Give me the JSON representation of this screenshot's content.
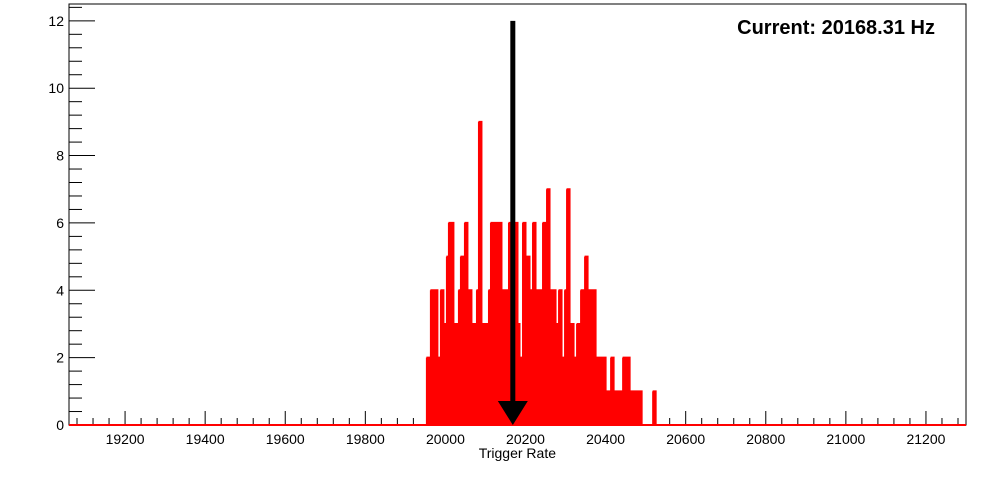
{
  "chart_data": {
    "type": "histogram",
    "title": "",
    "xlabel": "Trigger Rate",
    "ylabel": "",
    "annotation": "Current: 20168.31 Hz",
    "marker_x": 20168.31,
    "xlim": [
      19060,
      21300
    ],
    "ylim": [
      0,
      12.5
    ],
    "x_ticks": [
      19200,
      19400,
      19600,
      19800,
      20000,
      20200,
      20400,
      20600,
      20800,
      21000,
      21200
    ],
    "y_ticks": [
      0,
      2,
      4,
      6,
      8,
      10,
      12
    ],
    "grid": false,
    "series": [
      {
        "color": "#ff0000",
        "bin_width": 5,
        "values": [
          [
            19955,
            2
          ],
          [
            19965,
            4
          ],
          [
            19970,
            2
          ],
          [
            19975,
            4
          ],
          [
            19980,
            1
          ],
          [
            19985,
            2
          ],
          [
            19990,
            4
          ],
          [
            19995,
            3
          ],
          [
            20000,
            2
          ],
          [
            20005,
            5
          ],
          [
            20010,
            6
          ],
          [
            20015,
            6
          ],
          [
            20020,
            3
          ],
          [
            20025,
            2
          ],
          [
            20030,
            3
          ],
          [
            20035,
            4
          ],
          [
            20040,
            5
          ],
          [
            20045,
            3
          ],
          [
            20050,
            6
          ],
          [
            20055,
            4
          ],
          [
            20060,
            4
          ],
          [
            20065,
            3
          ],
          [
            20070,
            2
          ],
          [
            20075,
            3
          ],
          [
            20080,
            4
          ],
          [
            20085,
            9
          ],
          [
            20090,
            3
          ],
          [
            20095,
            2
          ],
          [
            20100,
            3
          ],
          [
            20105,
            2
          ],
          [
            20110,
            4
          ],
          [
            20115,
            6
          ],
          [
            20120,
            3
          ],
          [
            20125,
            6
          ],
          [
            20130,
            2
          ],
          [
            20135,
            6
          ],
          [
            20140,
            4
          ],
          [
            20145,
            3
          ],
          [
            20150,
            4
          ],
          [
            20155,
            2
          ],
          [
            20160,
            6
          ],
          [
            20165,
            3
          ],
          [
            20170,
            4
          ],
          [
            20175,
            6
          ],
          [
            20180,
            3
          ],
          [
            20185,
            1
          ],
          [
            20190,
            2
          ],
          [
            20195,
            6
          ],
          [
            20200,
            4
          ],
          [
            20205,
            5
          ],
          [
            20210,
            2
          ],
          [
            20215,
            4
          ],
          [
            20220,
            6
          ],
          [
            20225,
            2
          ],
          [
            20230,
            4
          ],
          [
            20235,
            3
          ],
          [
            20240,
            4
          ],
          [
            20245,
            6
          ],
          [
            20250,
            3
          ],
          [
            20255,
            7
          ],
          [
            20260,
            4
          ],
          [
            20265,
            2
          ],
          [
            20270,
            4
          ],
          [
            20275,
            1
          ],
          [
            20280,
            3
          ],
          [
            20285,
            4
          ],
          [
            20290,
            2
          ],
          [
            20295,
            1
          ],
          [
            20300,
            4
          ],
          [
            20305,
            7
          ],
          [
            20310,
            3
          ],
          [
            20315,
            3
          ],
          [
            20320,
            2
          ],
          [
            20325,
            2
          ],
          [
            20330,
            3
          ],
          [
            20335,
            1
          ],
          [
            20340,
            4
          ],
          [
            20345,
            3
          ],
          [
            20350,
            5
          ],
          [
            20355,
            2
          ],
          [
            20360,
            4
          ],
          [
            20365,
            4
          ],
          [
            20370,
            4
          ],
          [
            20375,
            2
          ],
          [
            20380,
            1
          ],
          [
            20385,
            2
          ],
          [
            20390,
            1
          ],
          [
            20395,
            2
          ],
          [
            20400,
            1
          ],
          [
            20405,
            1
          ],
          [
            20410,
            1
          ],
          [
            20415,
            2
          ],
          [
            20420,
            1
          ],
          [
            20425,
            1
          ],
          [
            20430,
            1
          ],
          [
            20435,
            1
          ],
          [
            20440,
            1
          ],
          [
            20445,
            2
          ],
          [
            20450,
            1
          ],
          [
            20455,
            2
          ],
          [
            20460,
            1
          ],
          [
            20465,
            1
          ],
          [
            20470,
            1
          ],
          [
            20475,
            1
          ],
          [
            20480,
            1
          ],
          [
            20485,
            1
          ],
          [
            20520,
            1
          ]
        ]
      }
    ]
  }
}
